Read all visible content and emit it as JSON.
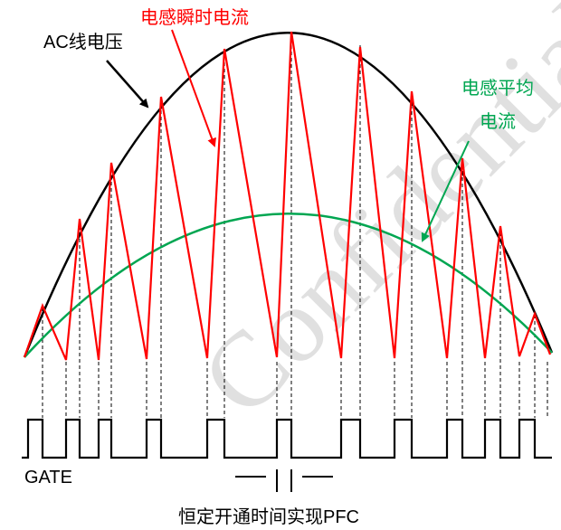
{
  "labels": {
    "ac_voltage": "AC线电压",
    "inductor_instant": "电感瞬时电流",
    "inductor_average_line1": "电感平均",
    "inductor_average_line2": "电流",
    "gate": "GATE",
    "caption": "恒定开通时间实现PFC"
  },
  "watermark": "Confidential",
  "colors": {
    "ac_voltage": "#000000",
    "inductor_instant": "#ff0000",
    "inductor_average": "#00a651",
    "watermark": "#d9d9d9"
  }
}
